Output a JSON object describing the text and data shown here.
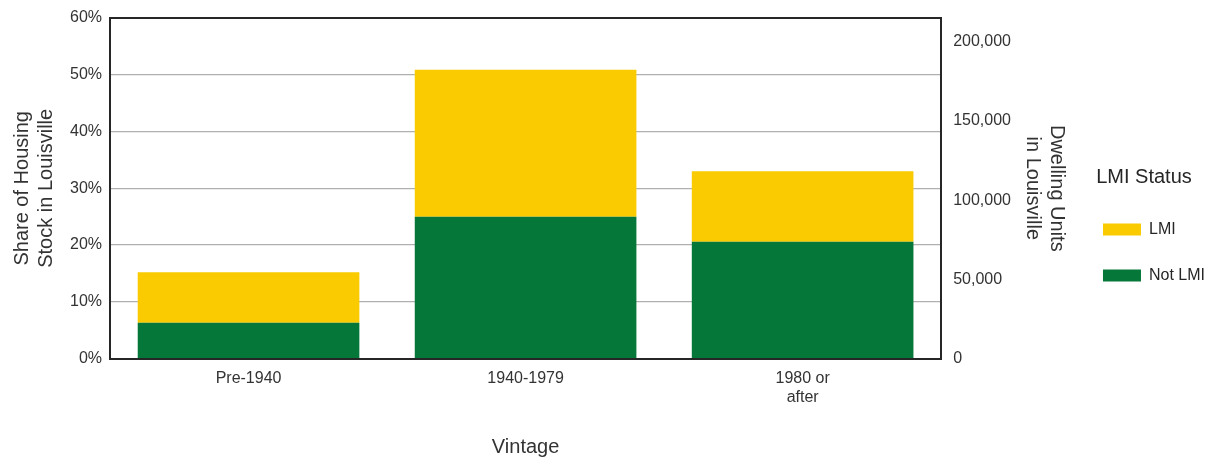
{
  "chart_data": {
    "type": "bar",
    "stacked": true,
    "xlabel": "Vintage",
    "ylabel": "Share of Housing Stock in Louisville",
    "y2label": "Dwelling Units in Louisville",
    "legend_title": "LMI Status",
    "categories": [
      "Pre-1940",
      "1940-1979",
      "1980 or after"
    ],
    "series": [
      {
        "name": "Not LMI",
        "color": "#057839",
        "values": [
          6.3,
          25.0,
          20.6
        ]
      },
      {
        "name": "LMI",
        "color": "#f9cb00",
        "values": [
          8.9,
          25.9,
          12.4
        ]
      }
    ],
    "ylim": [
      0,
      60
    ],
    "yticks": [
      {
        "value": 0,
        "label": "0%"
      },
      {
        "value": 10,
        "label": "10%"
      },
      {
        "value": 20,
        "label": "20%"
      },
      {
        "value": 30,
        "label": "30%"
      },
      {
        "value": 40,
        "label": "40%"
      },
      {
        "value": 50,
        "label": "50%"
      },
      {
        "value": 60,
        "label": "60%"
      }
    ],
    "y2lim": [
      0,
      215000
    ],
    "y2ticks": [
      {
        "value": 0,
        "label": "0"
      },
      {
        "value": 50000,
        "label": "50,000"
      },
      {
        "value": 100000,
        "label": "100,000"
      },
      {
        "value": 150000,
        "label": "150,000"
      },
      {
        "value": 200000,
        "label": "200,000"
      }
    ],
    "grid": "y",
    "legend": "right"
  }
}
